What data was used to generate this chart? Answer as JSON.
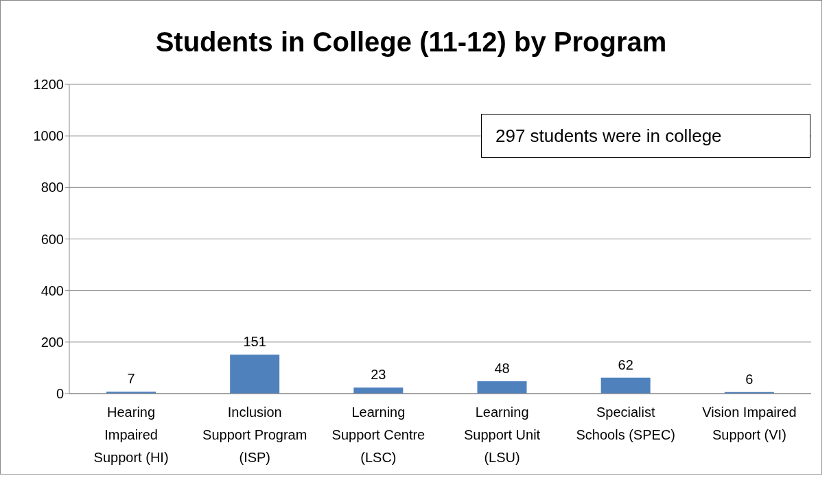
{
  "chart_data": {
    "type": "bar",
    "title": "Students in College (11-12) by Program",
    "categories": [
      "Hearing Impaired Support (HI)",
      "Inclusion Support Program (ISP)",
      "Learning Support Centre (LSC)",
      "Learning Support Unit (LSU)",
      "Specialist Schools (SPEC)",
      "Vision Impaired Support (VI)"
    ],
    "values": [
      7,
      151,
      23,
      48,
      62,
      6
    ],
    "color": "#4f81bd",
    "ylim": [
      0,
      1200
    ],
    "yticks": [
      0,
      200,
      400,
      600,
      800,
      1000,
      1200
    ],
    "grid": "y",
    "data_labels": true,
    "annotations": [
      "297 students were in college"
    ]
  }
}
